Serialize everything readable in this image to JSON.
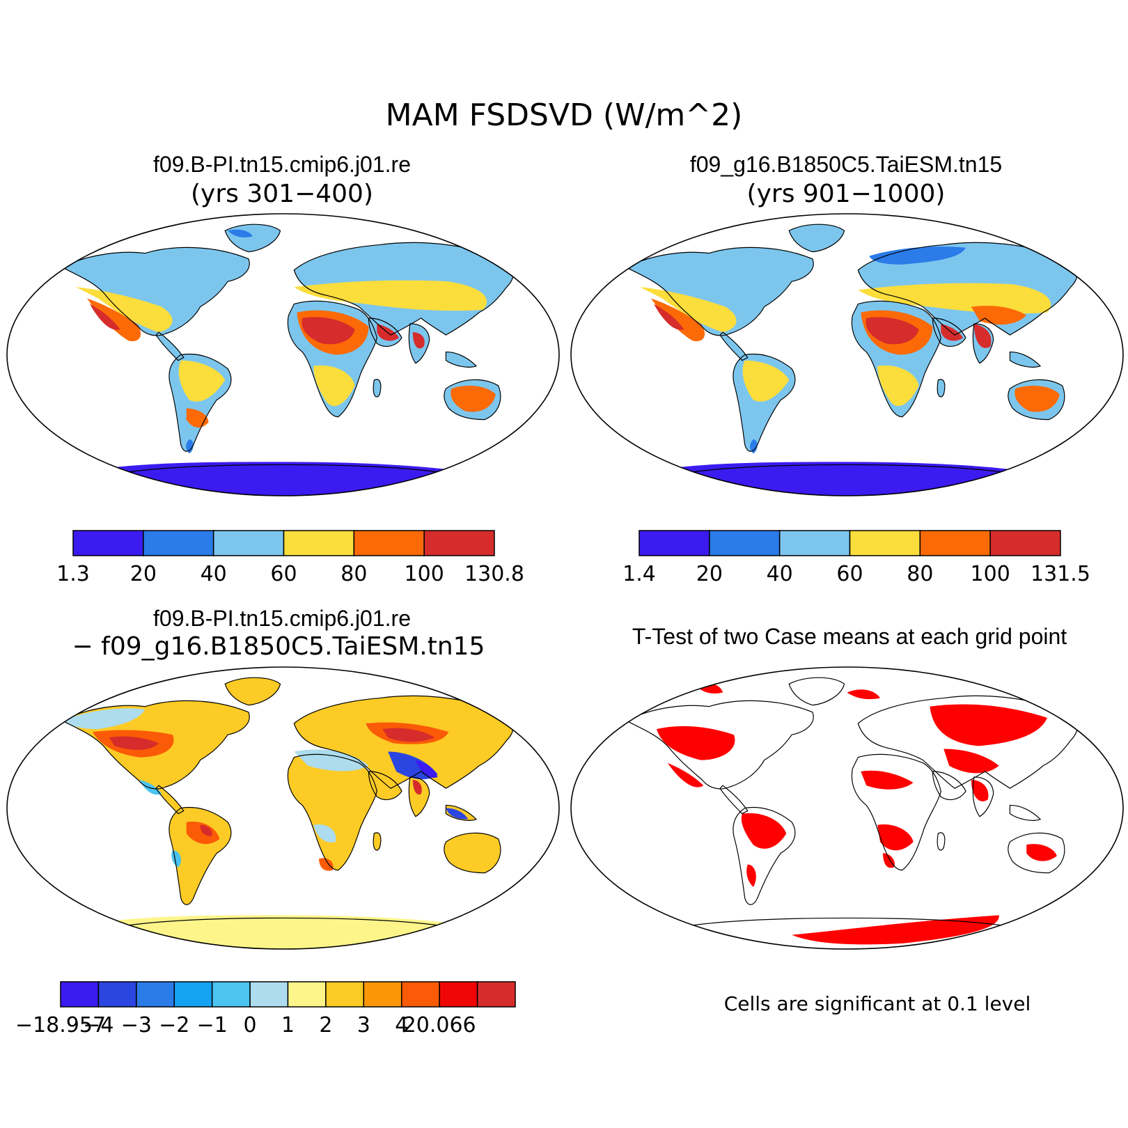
{
  "title": "MAM FSDSVD (W/m^2)",
  "panels": [
    {
      "title": "f09.B-PI.tn15.cmip6.j01.re",
      "subtitle": "(yrs 301−400)"
    },
    {
      "title": "f09_g16.B1850C5.TaiESM.tn15",
      "subtitle": "(yrs 901−1000)"
    },
    {
      "title": "f09.B-PI.tn15.cmip6.j01.re",
      "subtitle": "− f09_g16.B1850C5.TaiESM.tn15"
    },
    {
      "title": "T-Test of two Case means at each grid point",
      "subtitle": ""
    }
  ],
  "colorbars": [
    {
      "labels": [
        "1.3",
        "20",
        "40",
        "60",
        "80",
        "100",
        "130.8"
      ],
      "colors": [
        "#3b1bf0",
        "#2b7be8",
        "#7cc6ee",
        "#fbdd3c",
        "#fb6a06",
        "#d62c2c"
      ]
    },
    {
      "labels": [
        "1.4",
        "20",
        "40",
        "60",
        "80",
        "100",
        "131.5"
      ],
      "colors": [
        "#3b1bf0",
        "#2b7be8",
        "#7cc6ee",
        "#fbdd3c",
        "#fb6a06",
        "#d62c2c"
      ]
    },
    {
      "labels": [
        "−18.957",
        "−4",
        "−3",
        "−2",
        "−1",
        "0",
        "1",
        "2",
        "3",
        "4",
        "20.066"
      ],
      "colors": [
        "#3b1bf0",
        "#2b45e0",
        "#2b7be8",
        "#14a2f2",
        "#4cc3f0",
        "#acdcee",
        "#fdf58a",
        "#fccb26",
        "#fb9606",
        "#fb5a06",
        "#f00606",
        "#d62c2c"
      ]
    }
  ],
  "note": "Cells are significant at 0.1 level",
  "map_fill_colors": {
    "antarctica_abs": "#3b1bf0",
    "antarctica_diff": "#fdf58a",
    "significant": "#ff0000"
  }
}
